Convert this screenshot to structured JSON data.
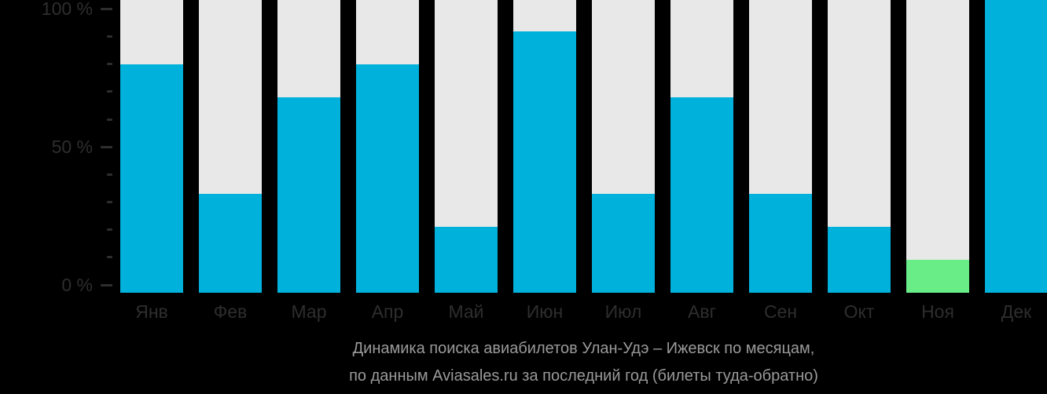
{
  "chart_data": {
    "type": "bar",
    "title": "Динамика поиска авиабилетов Улан-Удэ – Ижевск по месяцам, по данным Aviasales.ru за последний год (билеты туда-обратно)",
    "categories": [
      "Янв",
      "Фев",
      "Мар",
      "Апр",
      "Май",
      "Июн",
      "Июл",
      "Авг",
      "Сен",
      "Окт",
      "Ноя",
      "Дек"
    ],
    "values": [
      80,
      33,
      68,
      80,
      21,
      92,
      33,
      68,
      33,
      21,
      9,
      100
    ],
    "bar_colors": [
      "#00b1db",
      "#00b1db",
      "#00b1db",
      "#00b1db",
      "#00b1db",
      "#00b1db",
      "#00b1db",
      "#00b1db",
      "#00b1db",
      "#00b1db",
      "#69ee87",
      "#00b1db"
    ],
    "xlabel": "",
    "ylabel": "",
    "ylim": [
      0,
      100
    ],
    "ytick_minor_step": 10,
    "yticks_labeled": [
      {
        "value": 100,
        "label": "100 %"
      },
      {
        "value": 50,
        "label": "50 %"
      },
      {
        "value": 0,
        "label": "0 %"
      }
    ],
    "grid": false,
    "legend_position": "none",
    "track_color": "#e8e8e8"
  },
  "caption": {
    "line1": "Динамика поиска авиабилетов Улан-Удэ – Ижевск по месяцам,",
    "line2": "по данным Aviasales.ru за последний год (билеты туда-обратно)"
  },
  "colors": {
    "background": "#000000",
    "bar_default": "#00b1db",
    "bar_highlight": "#69ee87",
    "bar_track": "#e8e8e8",
    "axis_text": "#2e2e2e",
    "caption_text": "#9a9a9a"
  }
}
